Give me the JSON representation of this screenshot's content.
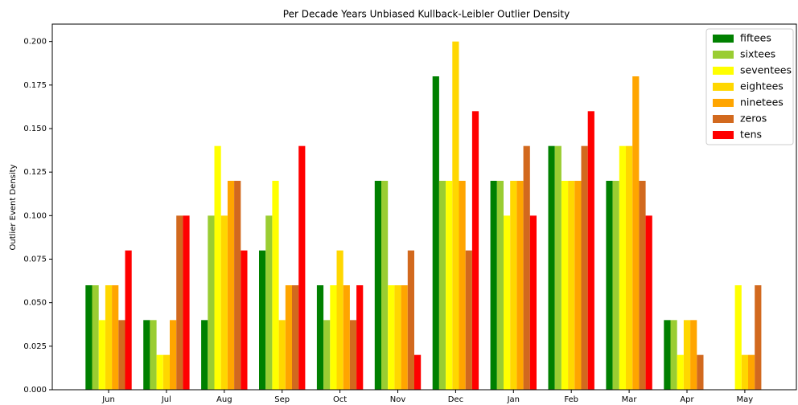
{
  "chart_data": {
    "type": "bar",
    "title": "Per Decade Years Unbiased Kullback-Leibler Outlier Density",
    "y_label": "Outlier Event Density",
    "categories": [
      "Jun",
      "Jul",
      "Aug",
      "Sep",
      "Oct",
      "Nov",
      "Dec",
      "Jan",
      "Feb",
      "Mar",
      "Apr",
      "May"
    ],
    "series": [
      {
        "name": "fiftees",
        "color": "#008000",
        "values": [
          0.06,
          0.04,
          0.04,
          0.08,
          0.06,
          0.12,
          0.18,
          0.12,
          0.14,
          0.12,
          0.04,
          0
        ]
      },
      {
        "name": "sixtees",
        "color": "#9acd32",
        "values": [
          0.06,
          0.04,
          0.1,
          0.1,
          0.04,
          0.12,
          0.12,
          0.12,
          0.14,
          0.12,
          0.04,
          0
        ]
      },
      {
        "name": "seventees",
        "color": "#ffff00",
        "values": [
          0.04,
          0.02,
          0.14,
          0.12,
          0.06,
          0.06,
          0.12,
          0.1,
          0.12,
          0.14,
          0.02,
          0.06
        ]
      },
      {
        "name": "eightees",
        "color": "#ffd700",
        "values": [
          0.06,
          0.02,
          0.1,
          0.04,
          0.08,
          0.06,
          0.2,
          0.12,
          0.12,
          0.14,
          0.04,
          0.02
        ]
      },
      {
        "name": "ninetees",
        "color": "#ffa500",
        "values": [
          0.06,
          0.04,
          0.12,
          0.06,
          0.06,
          0.06,
          0.12,
          0.12,
          0.12,
          0.18,
          0.04,
          0.02
        ]
      },
      {
        "name": "zeros",
        "color": "#d2691e",
        "values": [
          0.04,
          0.1,
          0.12,
          0.06,
          0.04,
          0.08,
          0.08,
          0.14,
          0.14,
          0.12,
          0.02,
          0.06
        ]
      },
      {
        "name": "tens",
        "color": "#ff0000",
        "values": [
          0.08,
          0.1,
          0.08,
          0.14,
          0.06,
          0.02,
          0.16,
          0.1,
          0.16,
          0.1,
          0,
          0
        ]
      }
    ],
    "ylim": [
      0,
      0.21
    ],
    "yticks": [
      {
        "value": 0,
        "label": "0.000"
      },
      {
        "value": 0.025,
        "label": "0.025"
      },
      {
        "value": 0.05,
        "label": "0.050"
      },
      {
        "value": 0.075,
        "label": "0.075"
      },
      {
        "value": 0.1,
        "label": "0.100"
      },
      {
        "value": 0.125,
        "label": "0.125"
      },
      {
        "value": 0.15,
        "label": "0.150"
      },
      {
        "value": 0.175,
        "label": "0.175"
      },
      {
        "value": 0.2,
        "label": "0.200"
      }
    ],
    "legend": "upper right"
  }
}
